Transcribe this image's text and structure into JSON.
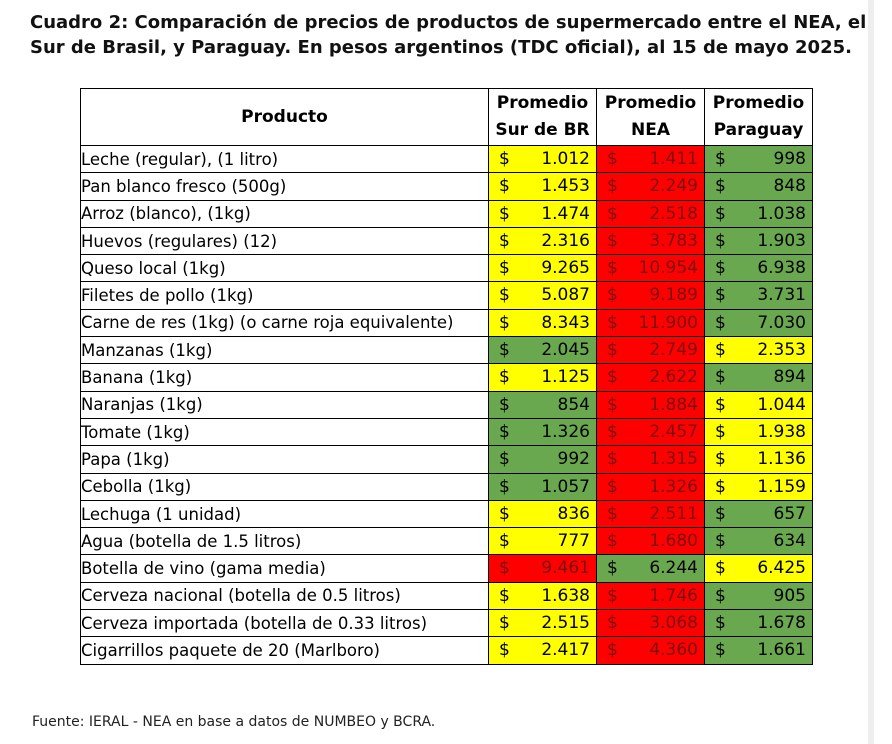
{
  "title": "Cuadro 2: Comparación de precios de productos de supermercado entre el NEA, el Sur de Brasil, y Paraguay. En pesos argentinos (TDC oficial), al 15 de mayo 2025.",
  "colors": {
    "yellow": "#ffff00",
    "red": "#ff0000",
    "green": "#6aa84f"
  },
  "table": {
    "header": {
      "product": "Producto",
      "cols": [
        {
          "l1": "Promedio",
          "l2": "Sur de BR"
        },
        {
          "l1": "Promedio",
          "l2": "NEA"
        },
        {
          "l1": "Promedio",
          "l2": "Paraguay"
        }
      ]
    },
    "rows": [
      {
        "name": "Leche (regular), (1 litro)",
        "cells": [
          {
            "c": "$",
            "v": "1.012",
            "col": "y"
          },
          {
            "c": "$",
            "v": "1.411",
            "col": "r"
          },
          {
            "c": "$",
            "v": "998",
            "col": "g"
          }
        ]
      },
      {
        "name": "Pan blanco fresco (500g)",
        "cells": [
          {
            "c": "$",
            "v": "1.453",
            "col": "y"
          },
          {
            "c": "$",
            "v": "2.249",
            "col": "r"
          },
          {
            "c": "$",
            "v": "848",
            "col": "g"
          }
        ]
      },
      {
        "name": "Arroz (blanco), (1kg)",
        "cells": [
          {
            "c": "$",
            "v": "1.474",
            "col": "y"
          },
          {
            "c": "$",
            "v": "2.518",
            "col": "r"
          },
          {
            "c": "$",
            "v": "1.038",
            "col": "g"
          }
        ]
      },
      {
        "name": "Huevos (regulares) (12)",
        "cells": [
          {
            "c": "$",
            "v": "2.316",
            "col": "y"
          },
          {
            "c": "$",
            "v": "3.783",
            "col": "r"
          },
          {
            "c": "$",
            "v": "1.903",
            "col": "g"
          }
        ]
      },
      {
        "name": "Queso local (1kg)",
        "cells": [
          {
            "c": "$",
            "v": "9.265",
            "col": "y"
          },
          {
            "c": "$",
            "v": "10.954",
            "col": "r"
          },
          {
            "c": "$",
            "v": "6.938",
            "col": "g"
          }
        ]
      },
      {
        "name": "Filetes de pollo (1kg)",
        "cells": [
          {
            "c": "$",
            "v": "5.087",
            "col": "y"
          },
          {
            "c": "$",
            "v": "9.189",
            "col": "r"
          },
          {
            "c": "$",
            "v": "3.731",
            "col": "g"
          }
        ]
      },
      {
        "name": "Carne de res (1kg) (o carne roja equivalente)",
        "cells": [
          {
            "c": "$",
            "v": "8.343",
            "col": "y"
          },
          {
            "c": "$",
            "v": "11.900",
            "col": "r"
          },
          {
            "c": "$",
            "v": "7.030",
            "col": "g"
          }
        ]
      },
      {
        "name": "Manzanas (1kg)",
        "cells": [
          {
            "c": "$",
            "v": "2.045",
            "col": "g"
          },
          {
            "c": "$",
            "v": "2.749",
            "col": "r"
          },
          {
            "c": "$",
            "v": "2.353",
            "col": "y"
          }
        ]
      },
      {
        "name": "Banana (1kg)",
        "cells": [
          {
            "c": "$",
            "v": "1.125",
            "col": "y"
          },
          {
            "c": "$",
            "v": "2.622",
            "col": "r"
          },
          {
            "c": "$",
            "v": "894",
            "col": "g"
          }
        ]
      },
      {
        "name": "Naranjas (1kg)",
        "cells": [
          {
            "c": "$",
            "v": "854",
            "col": "g"
          },
          {
            "c": "$",
            "v": "1.884",
            "col": "r"
          },
          {
            "c": "$",
            "v": "1.044",
            "col": "y"
          }
        ]
      },
      {
        "name": "Tomate (1kg)",
        "cells": [
          {
            "c": "$",
            "v": "1.326",
            "col": "g"
          },
          {
            "c": "$",
            "v": "2.457",
            "col": "r"
          },
          {
            "c": "$",
            "v": "1.938",
            "col": "y"
          }
        ]
      },
      {
        "name": "Papa (1kg)",
        "cells": [
          {
            "c": "$",
            "v": "992",
            "col": "g"
          },
          {
            "c": "$",
            "v": "1.315",
            "col": "r"
          },
          {
            "c": "$",
            "v": "1.136",
            "col": "y"
          }
        ]
      },
      {
        "name": "Cebolla (1kg)",
        "cells": [
          {
            "c": "$",
            "v": "1.057",
            "col": "g"
          },
          {
            "c": "$",
            "v": "1.326",
            "col": "r"
          },
          {
            "c": "$",
            "v": "1.159",
            "col": "y"
          }
        ]
      },
      {
        "name": "Lechuga (1 unidad)",
        "cells": [
          {
            "c": "$",
            "v": "836",
            "col": "y"
          },
          {
            "c": "$",
            "v": "2.511",
            "col": "r"
          },
          {
            "c": "$",
            "v": "657",
            "col": "g"
          }
        ]
      },
      {
        "name": "Agua (botella de 1.5 litros)",
        "cells": [
          {
            "c": "$",
            "v": "777",
            "col": "y"
          },
          {
            "c": "$",
            "v": "1.680",
            "col": "r"
          },
          {
            "c": "$",
            "v": "634",
            "col": "g"
          }
        ]
      },
      {
        "name": "Botella de vino (gama media)",
        "cells": [
          {
            "c": "$",
            "v": "9.461",
            "col": "r"
          },
          {
            "c": "$",
            "v": "6.244",
            "col": "g"
          },
          {
            "c": "$",
            "v": "6.425",
            "col": "y"
          }
        ]
      },
      {
        "name": "Cerveza nacional (botella de 0.5 litros)",
        "cells": [
          {
            "c": "$",
            "v": "1.638",
            "col": "y"
          },
          {
            "c": "$",
            "v": "1.746",
            "col": "r"
          },
          {
            "c": "$",
            "v": "905",
            "col": "g"
          }
        ]
      },
      {
        "name": "Cerveza importada (botella de 0.33 litros)",
        "cells": [
          {
            "c": "$",
            "v": "2.515",
            "col": "y"
          },
          {
            "c": "$",
            "v": "3.068",
            "col": "r"
          },
          {
            "c": "$",
            "v": "1.678",
            "col": "g"
          }
        ]
      },
      {
        "name": "Cigarrillos paquete de 20 (Marlboro)",
        "cells": [
          {
            "c": "$",
            "v": "2.417",
            "col": "y"
          },
          {
            "c": "$",
            "v": "4.360",
            "col": "r"
          },
          {
            "c": "$",
            "v": "1.661",
            "col": "g"
          }
        ]
      }
    ]
  },
  "source": "Fuente: IERAL - NEA en base a datos de NUMBEO y BCRA."
}
